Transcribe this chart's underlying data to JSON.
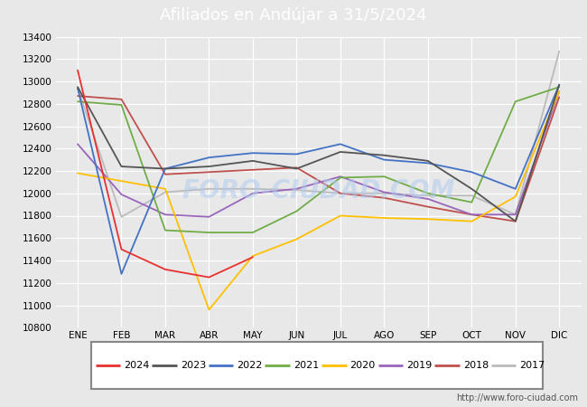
{
  "title": "Afiliados en Andújar a 31/5/2024",
  "title_bg_color": "#4e7ac7",
  "title_text_color": "white",
  "ylim": [
    10800,
    13400
  ],
  "yticks": [
    10800,
    11000,
    11200,
    11400,
    11600,
    11800,
    12000,
    12200,
    12400,
    12600,
    12800,
    13000,
    13200,
    13400
  ],
  "months": [
    "ENE",
    "FEB",
    "MAR",
    "ABR",
    "MAY",
    "JUN",
    "JUL",
    "AGO",
    "SEP",
    "OCT",
    "NOV",
    "DIC"
  ],
  "watermark": "FORO-CIUDAD.COM",
  "url": "http://www.foro-ciudad.com",
  "series": {
    "2024": {
      "color": "#e83030",
      "data": [
        13100,
        11500,
        11320,
        11250,
        11430,
        null,
        null,
        null,
        null,
        null,
        null,
        null
      ]
    },
    "2023": {
      "color": "#555555",
      "data": [
        12950,
        12240,
        12220,
        12240,
        12290,
        12220,
        12370,
        12340,
        12290,
        12040,
        11750,
        12970
      ]
    },
    "2022": {
      "color": "#4472c4",
      "data": [
        12940,
        11280,
        12220,
        12320,
        12360,
        12350,
        12440,
        12300,
        12270,
        12190,
        12040,
        12970
      ]
    },
    "2021": {
      "color": "#70ad47",
      "data": [
        12820,
        12790,
        11670,
        11650,
        11650,
        11840,
        12140,
        12150,
        12000,
        11920,
        12820,
        12950
      ]
    },
    "2020": {
      "color": "#ffc000",
      "data": [
        12180,
        12110,
        12040,
        10960,
        11440,
        11590,
        11800,
        11780,
        11770,
        11750,
        11970,
        12910
      ]
    },
    "2019": {
      "color": "#9966bb",
      "data": [
        12440,
        11990,
        11810,
        11790,
        12000,
        12040,
        12150,
        12010,
        11950,
        11810,
        11810,
        12910
      ]
    },
    "2018": {
      "color": "#c0504d",
      "data": [
        12870,
        12840,
        12170,
        12190,
        12210,
        12230,
        12000,
        11960,
        11880,
        11810,
        11750,
        12860
      ]
    },
    "2017": {
      "color": "#bbbbbb",
      "data": [
        12940,
        11790,
        12010,
        12040,
        12040,
        12030,
        12000,
        12000,
        11980,
        11980,
        11810,
        13270
      ]
    }
  },
  "background_color": "#e8e8e8",
  "plot_bg_color": "#e8e8e8",
  "grid_color": "white",
  "legend_order": [
    "2024",
    "2023",
    "2022",
    "2021",
    "2020",
    "2019",
    "2018",
    "2017"
  ]
}
